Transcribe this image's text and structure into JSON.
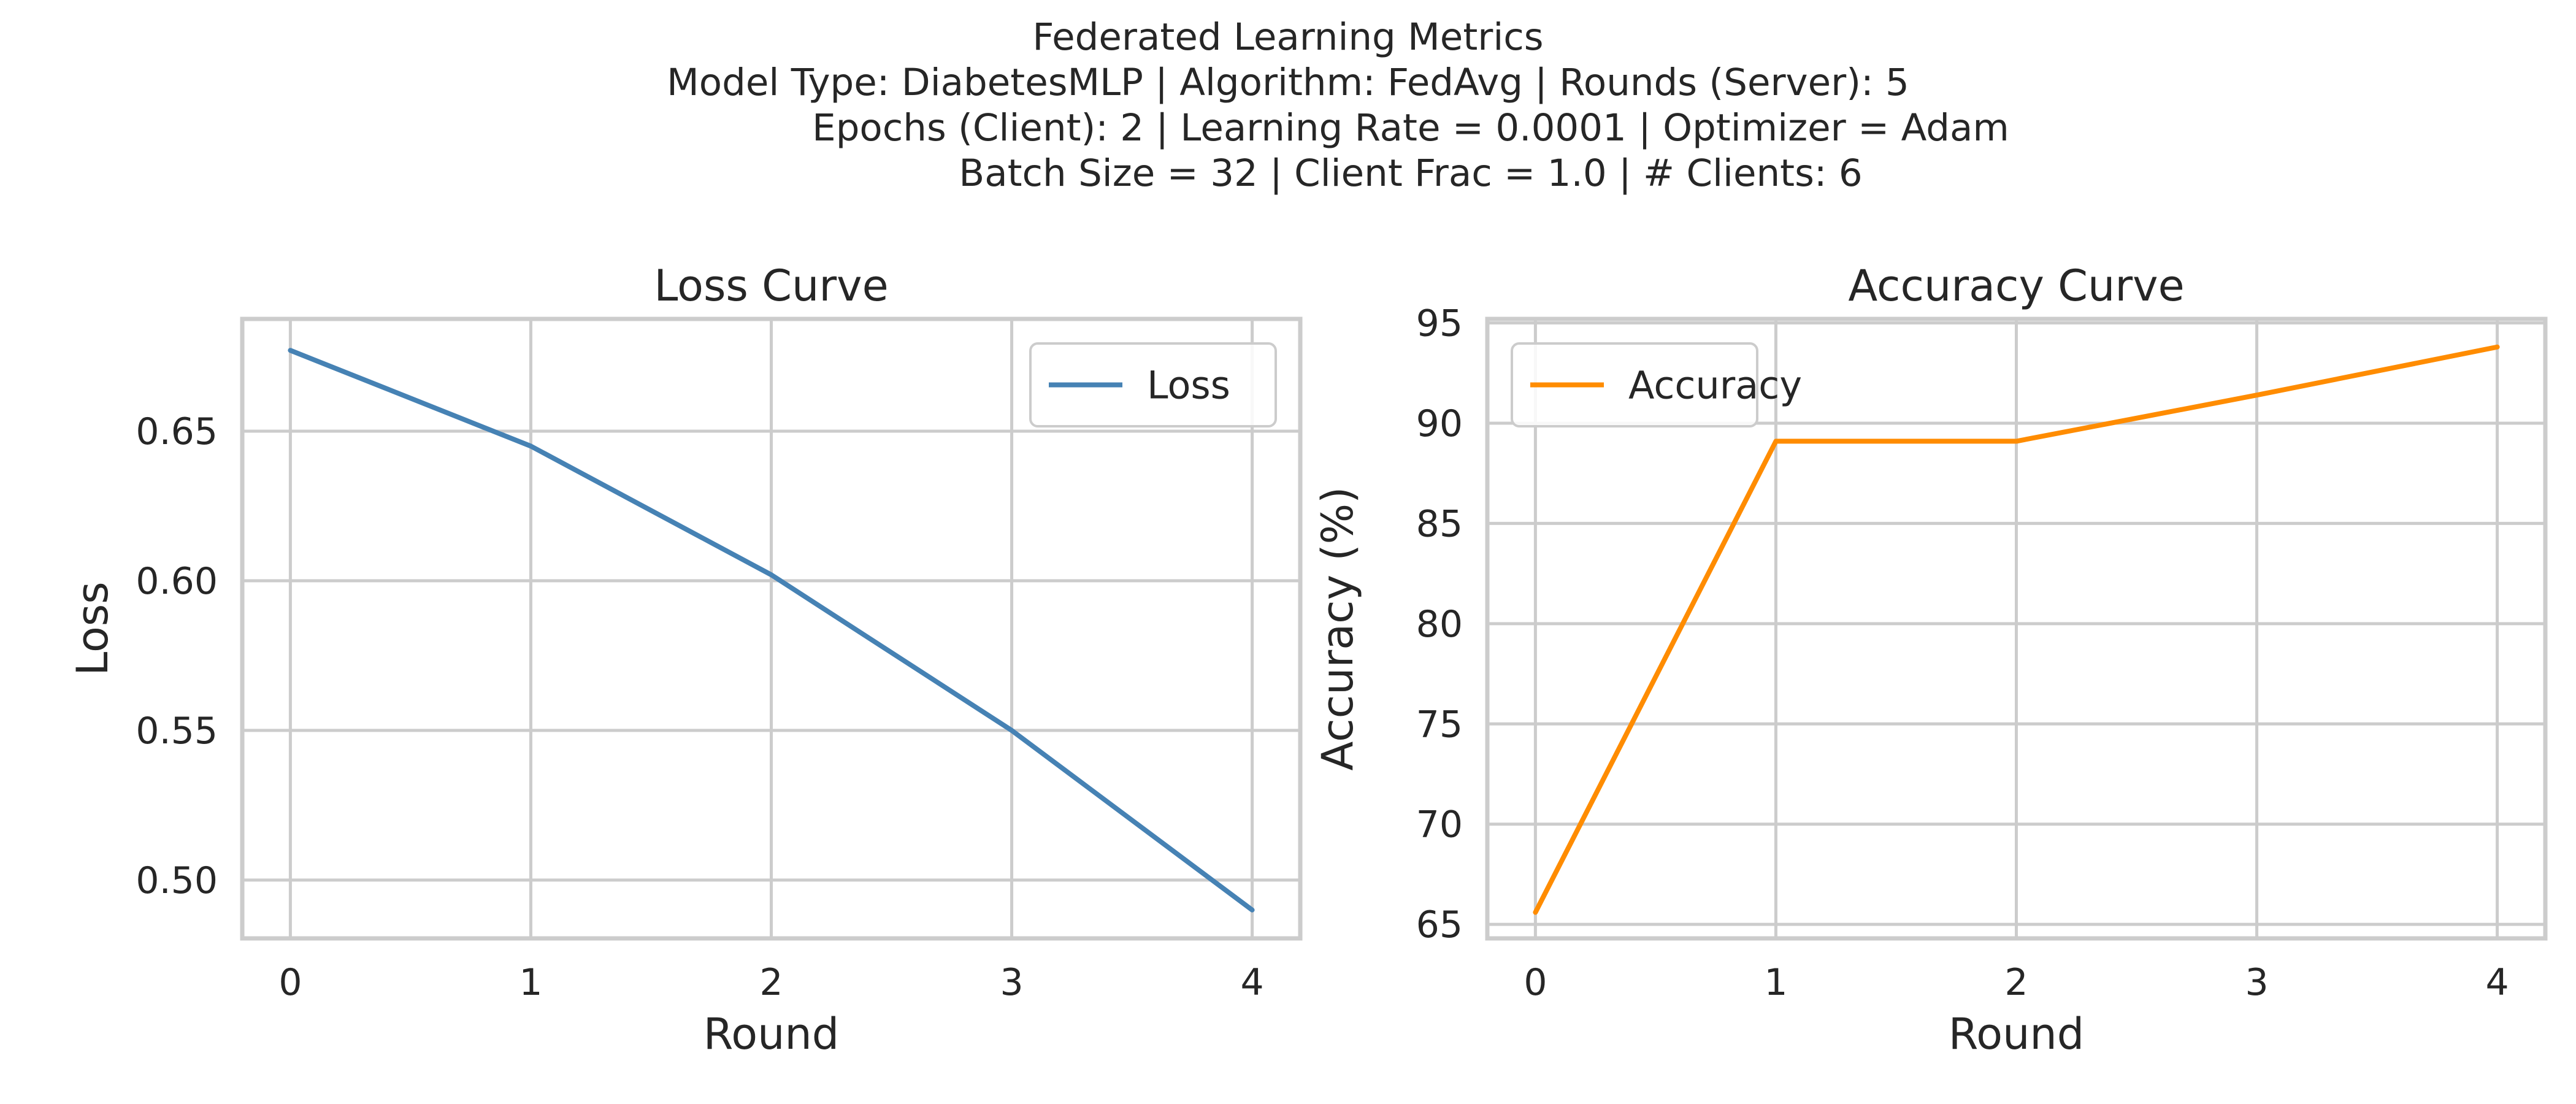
{
  "suptitle": {
    "line1": "Federated Learning Metrics",
    "line2": "Model Type: DiabetesMLP | Algorithm: FedAvg | Rounds (Server): 5",
    "line3": "Epochs (Client): 2 | Learning Rate = 0.0001 | Optimizer = Adam",
    "line4": "Batch Size = 32 | Client Frac = 1.0 | # Clients: 6"
  },
  "chart_data": [
    {
      "type": "line",
      "title": "Loss Curve",
      "xlabel": "Round",
      "ylabel": "Loss",
      "x": [
        0,
        1,
        2,
        3,
        4
      ],
      "xticks": [
        "0",
        "1",
        "2",
        "3",
        "4"
      ],
      "yticks": [
        0.5,
        0.55,
        0.6,
        0.65
      ],
      "ytick_labels": [
        "0.50",
        "0.55",
        "0.60",
        "0.65"
      ],
      "xlim": [
        -0.2,
        4.2
      ],
      "ylim": [
        0.4805,
        0.6875
      ],
      "grid": true,
      "legend_position": "top-right",
      "series": [
        {
          "name": "Loss",
          "color": "#4682b4",
          "values": [
            0.677,
            0.645,
            0.602,
            0.55,
            0.49
          ]
        }
      ]
    },
    {
      "type": "line",
      "title": "Accuracy Curve",
      "xlabel": "Round",
      "ylabel": "Accuracy (%)",
      "x": [
        0,
        1,
        2,
        3,
        4
      ],
      "xticks": [
        "0",
        "1",
        "2",
        "3",
        "4"
      ],
      "yticks": [
        65,
        70,
        75,
        80,
        85,
        90,
        95
      ],
      "ytick_labels": [
        "65",
        "70",
        "75",
        "80",
        "85",
        "90",
        "95"
      ],
      "xlim": [
        -0.2,
        4.2
      ],
      "ylim": [
        64.3,
        95.2
      ],
      "grid": true,
      "legend_position": "top-left",
      "series": [
        {
          "name": "Accuracy",
          "color": "#ff8c00",
          "values": [
            65.6,
            89.1,
            89.1,
            91.4,
            93.8
          ]
        }
      ]
    }
  ]
}
